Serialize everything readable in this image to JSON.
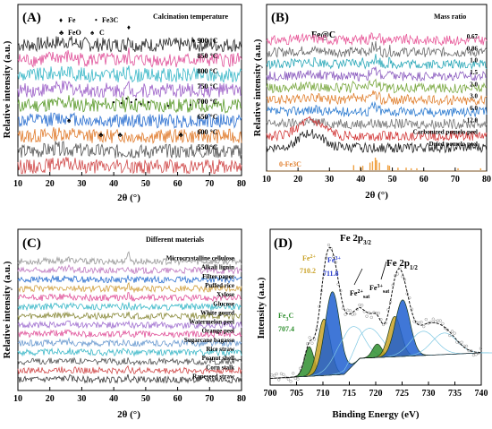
{
  "chart_data": [
    {
      "panel": "(A)",
      "type": "line",
      "xlabel": "2θ (°)",
      "ylabel": "Relative intensity (a.u.)",
      "xlim": [
        10,
        80
      ],
      "xticks": [
        10,
        20,
        30,
        40,
        50,
        60,
        70,
        80
      ],
      "legend": [
        {
          "symbol": "♦",
          "label": "Fe"
        },
        {
          "symbol": "•",
          "label": "Fe3C"
        },
        {
          "symbol": "♣",
          "label": "FeO"
        },
        {
          "symbol": "♠",
          "label": "C"
        }
      ],
      "annotation": "Calcination temperature",
      "series": [
        {
          "name": "900 °C",
          "color": "#222222",
          "peaks": [
            [
              26,
              0.3
            ],
            [
              44.7,
              1.2
            ],
            [
              65,
              0.15
            ]
          ]
        },
        {
          "name": "850 °C",
          "color": "#e0529a",
          "peaks": [
            [
              26,
              0.3
            ],
            [
              44.7,
              0.6
            ],
            [
              65,
              0.1
            ]
          ]
        },
        {
          "name": "800 °C",
          "color": "#3bb8c8",
          "peaks": [
            [
              26,
              0.35
            ],
            [
              37.7,
              0.15
            ],
            [
              43,
              0.2
            ],
            [
              44.7,
              0.45
            ],
            [
              49,
              0.15
            ]
          ]
        },
        {
          "name": "750 °C",
          "color": "#9b5ec7",
          "peaks": [
            [
              26,
              0.3
            ],
            [
              44.7,
              0.5
            ],
            [
              43,
              0.2
            ],
            [
              37.7,
              0.15
            ]
          ]
        },
        {
          "name": "700 °C",
          "color": "#5a9a2a",
          "peaks": [
            [
              26,
              0.3
            ],
            [
              37.7,
              0.3
            ],
            [
              40,
              0.2
            ],
            [
              43,
              0.35
            ],
            [
              44.7,
              0.5
            ],
            [
              45.9,
              0.3
            ],
            [
              49,
              0.2
            ],
            [
              58,
              0.15
            ]
          ]
        },
        {
          "name": "650 °C",
          "color": "#2a6fd0",
          "peaks": [
            [
              26,
              0.35
            ],
            [
              44.7,
              0.25
            ]
          ]
        },
        {
          "name": "600 °C",
          "color": "#e07a2a",
          "peaks": [
            [
              36,
              0.15
            ],
            [
              42,
              0.2
            ],
            [
              61,
              0.12
            ]
          ]
        },
        {
          "name": "550 °C",
          "color": "#555555",
          "peaks": [
            [
              22,
              0.15
            ]
          ]
        },
        {
          "name": "",
          "color": "#d04848",
          "peaks": [
            [
              22,
              0.15
            ]
          ]
        }
      ],
      "markers": [
        {
          "symbol": "♦",
          "x": 44.7
        },
        {
          "symbol": "♦",
          "x": 65
        },
        {
          "symbol": "♠",
          "x": 26
        },
        {
          "symbol": "♣",
          "x": 36
        },
        {
          "symbol": "♣",
          "x": 42
        },
        {
          "symbol": "♣",
          "x": 61
        }
      ]
    },
    {
      "panel": "(B)",
      "type": "line",
      "title": "Fe@C",
      "annotation": "Mass ratio",
      "xlabel": "2θ (°)",
      "ylabel": "Relative intensity (a.u.)",
      "xlim": [
        10,
        80
      ],
      "xticks": [
        10,
        20,
        30,
        40,
        50,
        60,
        70,
        80
      ],
      "reference": {
        "name": "0-Fe3C",
        "color": "#f0a040",
        "sticks": [
          [
            37.7,
            0.4
          ],
          [
            39.8,
            0.3
          ],
          [
            40.6,
            0.35
          ],
          [
            42.9,
            0.6
          ],
          [
            43.7,
            0.7
          ],
          [
            44.6,
            1.0
          ],
          [
            45.0,
            0.8
          ],
          [
            45.9,
            0.6
          ],
          [
            48.6,
            0.4
          ],
          [
            49.1,
            0.35
          ],
          [
            51.8,
            0.2
          ],
          [
            54.4,
            0.2
          ],
          [
            56.0,
            0.15
          ],
          [
            57.8,
            0.15
          ],
          [
            70.9,
            0.15
          ],
          [
            78.1,
            0.15
          ]
        ]
      },
      "series": [
        {
          "name": "0.67",
          "color": "#e85a9a"
        },
        {
          "name": "0.86",
          "color": "#6a6a6a"
        },
        {
          "name": "1.0",
          "color": "#2aa8b8"
        },
        {
          "name": "1.5",
          "color": "#8d5fc0"
        },
        {
          "name": "2.0",
          "color": "#7aa840"
        },
        {
          "name": "3.0",
          "color": "#e08030"
        },
        {
          "name": "6.0",
          "color": "#2a7ad0"
        },
        {
          "name": "12.0",
          "color": "#777777"
        },
        {
          "name": "Carbonized pomelo peel",
          "color": "#d23838"
        },
        {
          "name": "Dried pomelo peel",
          "color": "#222222"
        }
      ]
    },
    {
      "panel": "(C)",
      "type": "line",
      "annotation": "Different materials",
      "xlabel": "2θ (°)",
      "ylabel": "Relative intensity (a.u.)",
      "xlim": [
        10,
        80
      ],
      "xticks": [
        10,
        20,
        30,
        40,
        50,
        60,
        70,
        80
      ],
      "series": [
        {
          "name": "Microcrystalline cellulose",
          "color": "#9a9a9a"
        },
        {
          "name": "Alkali lignin",
          "color": "#c07ac0"
        },
        {
          "name": "Filter paper",
          "color": "#2a6fd0"
        },
        {
          "name": "Puffed rice",
          "color": "#d0a040"
        },
        {
          "name": "Xylose",
          "color": "#e0529a"
        },
        {
          "name": "Glucose",
          "color": "#3bb8c8"
        },
        {
          "name": "White gourd",
          "color": "#8a8a3a"
        },
        {
          "name": "Watermelon peel",
          "color": "#a070d0"
        },
        {
          "name": "Orange peel",
          "color": "#e0529a"
        },
        {
          "name": "Sugarcane bagasse",
          "color": "#6a9ad0"
        },
        {
          "name": "Rice straw",
          "color": "#3bb8c8"
        },
        {
          "name": "Peanut shell",
          "color": "#555555"
        },
        {
          "name": "Corn stalk",
          "color": "#d04848"
        },
        {
          "name": "Rapeseed straw",
          "color": "#3a3a3a"
        }
      ]
    },
    {
      "panel": "(D)",
      "type": "line",
      "xlabel": "Binding Energy (eV)",
      "ylabel": "Intensity (a.u.)",
      "xlim": [
        700,
        740
      ],
      "xticks": [
        700,
        705,
        710,
        715,
        720,
        725,
        730,
        735,
        740
      ],
      "labels": [
        "Fe 2p3/2",
        "Fe 2p1/2",
        "Fe3+ 711.8",
        "Fe2+ 710.2",
        "Fe3C 707.4",
        "Fe2+sat",
        "Fe3+sat"
      ],
      "components": [
        {
          "name": "Fe3C",
          "center": 707.4,
          "height": 0.22,
          "width": 0.9,
          "color": "#2f8f2f"
        },
        {
          "name": "Fe2+",
          "center": 710.2,
          "height": 0.42,
          "width": 1.2,
          "color": "#c9a227"
        },
        {
          "name": "Fe3+",
          "center": 711.8,
          "height": 0.62,
          "width": 1.4,
          "color": "#1f5fd0"
        },
        {
          "name": "Fe2+sat",
          "center": 715.0,
          "height": 0.3,
          "width": 2.4,
          "color": "#7ec8e3"
        },
        {
          "name": "Fe3+sat",
          "center": 718.8,
          "height": 0.22,
          "width": 2.4,
          "color": "#7ec8e3"
        },
        {
          "name": "Fe3C",
          "center": 720.3,
          "height": 0.1,
          "width": 0.9,
          "color": "#2f8f2f"
        },
        {
          "name": "Fe2+",
          "center": 723.6,
          "height": 0.3,
          "width": 1.2,
          "color": "#c9a227"
        },
        {
          "name": "Fe3+",
          "center": 725.1,
          "height": 0.42,
          "width": 1.4,
          "color": "#1f5fd0"
        },
        {
          "name": "sat",
          "center": 729.0,
          "height": 0.18,
          "width": 2.4,
          "color": "#7ec8e3"
        },
        {
          "name": "sat",
          "center": 733.0,
          "height": 0.16,
          "width": 2.4,
          "color": "#7ec8e3"
        }
      ],
      "background": [
        [
          700,
          0.05
        ],
        [
          714,
          0.08
        ],
        [
          717,
          0.2
        ],
        [
          740,
          0.24
        ]
      ]
    }
  ]
}
